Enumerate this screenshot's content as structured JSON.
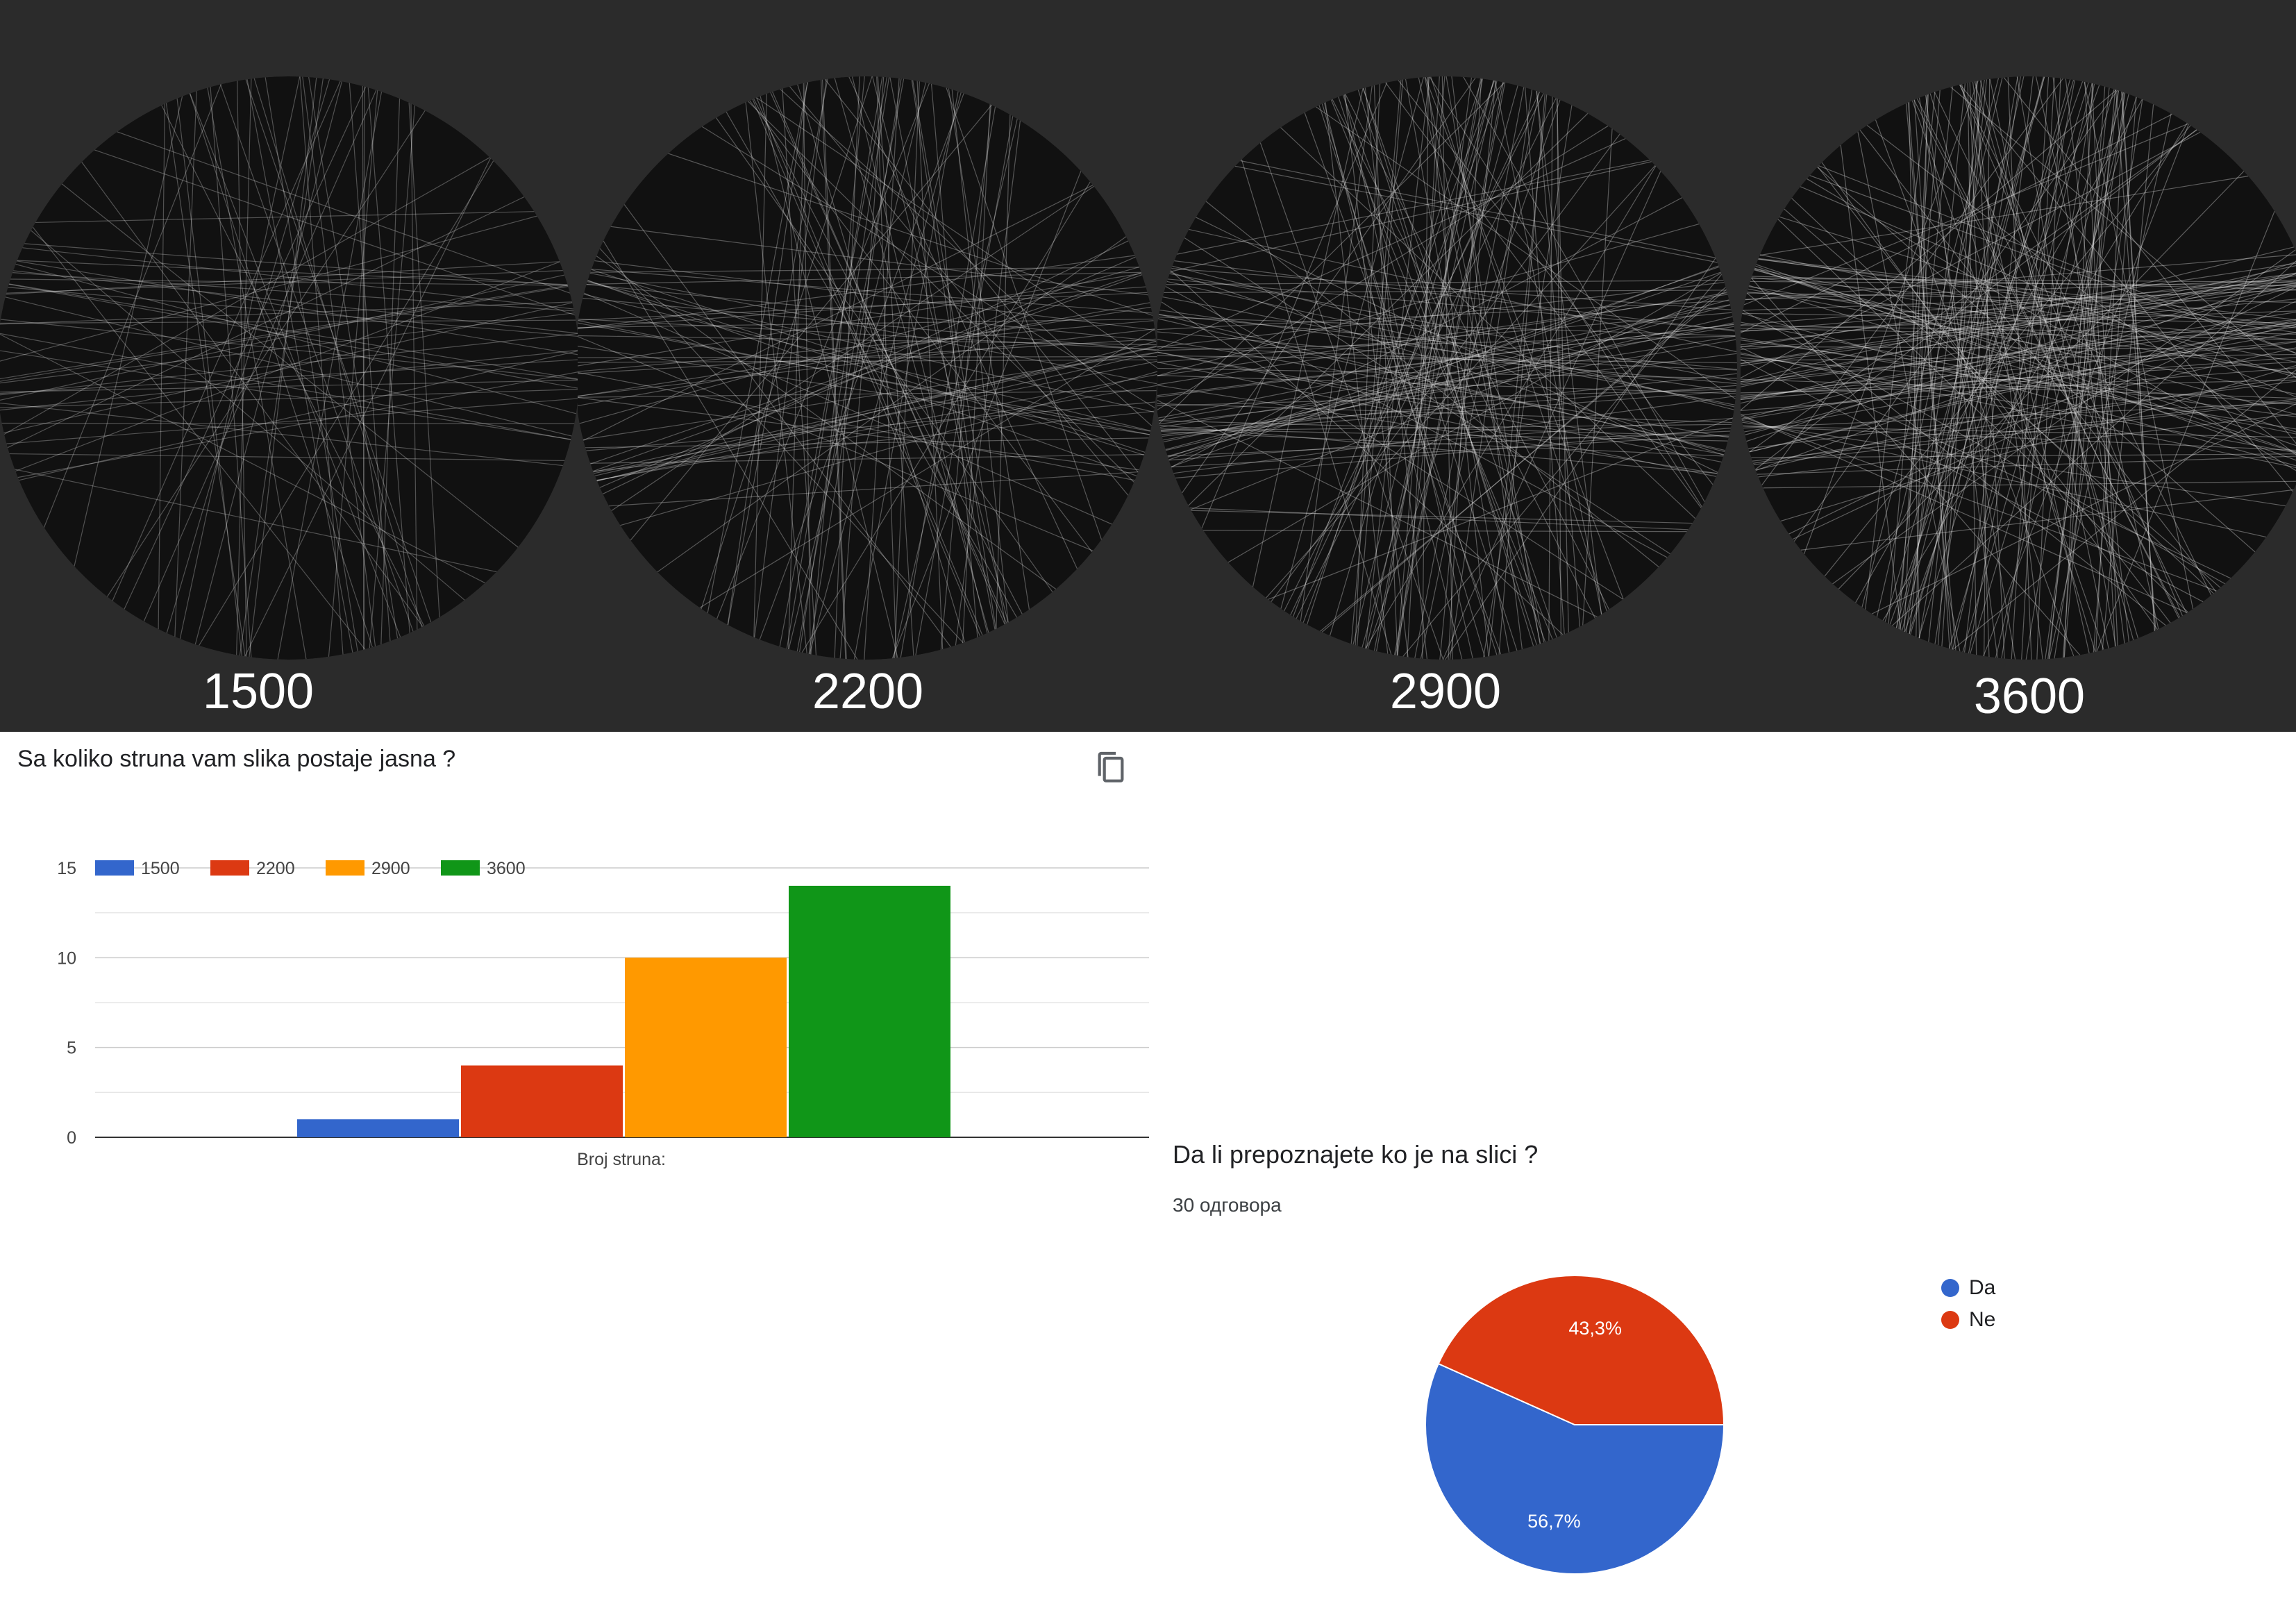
{
  "thumbnails": [
    {
      "label": "1500"
    },
    {
      "label": "2200"
    },
    {
      "label": "2900"
    },
    {
      "label": "3600"
    }
  ],
  "bar_card": {
    "title": "Sa koliko struna vam slika postaje jasna ?",
    "copy_icon": "copy-icon"
  },
  "pie_card": {
    "title": "Da li prepoznajete ko je na slici ?",
    "responses": "30 одговора"
  },
  "chart_data": [
    {
      "type": "bar",
      "categories": [
        "Broj struna:"
      ],
      "xlabel": "Broj struna:",
      "ylim": [
        0,
        15
      ],
      "yticks": [
        0,
        5,
        10,
        15
      ],
      "grid": true,
      "legend_position": "top-left",
      "series": [
        {
          "name": "1500",
          "values": [
            1
          ],
          "color": "#3366cc"
        },
        {
          "name": "2200",
          "values": [
            4
          ],
          "color": "#dc3912"
        },
        {
          "name": "2900",
          "values": [
            10
          ],
          "color": "#ff9900"
        },
        {
          "name": "3600",
          "values": [
            14
          ],
          "color": "#109618"
        }
      ]
    },
    {
      "type": "pie",
      "legend_position": "right",
      "slices": [
        {
          "name": "Da",
          "value": 56.7,
          "label": "56,7%",
          "color": "#3366cc"
        },
        {
          "name": "Ne",
          "value": 43.3,
          "label": "43,3%",
          "color": "#dc3912"
        }
      ]
    }
  ]
}
